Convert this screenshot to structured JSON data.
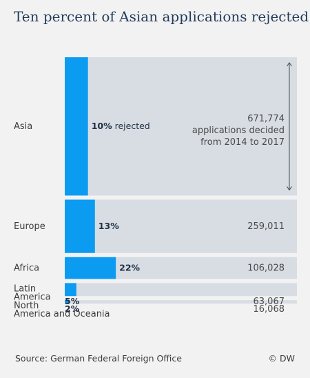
{
  "chart_data": {
    "type": "bar",
    "title": "Ten percent of Asian applications rejected",
    "categories": [
      "Asia",
      "Europe",
      "Africa",
      "Latin America",
      "North America and Oceania"
    ],
    "category_lines": [
      [
        "Asia"
      ],
      [
        "Europe"
      ],
      [
        "Africa"
      ],
      [
        "Latin",
        "America"
      ],
      [
        "North",
        "America and Oceania"
      ]
    ],
    "series": [
      {
        "values": [
          10,
          13,
          22,
          5,
          2
        ]
      }
    ],
    "totals": [
      671774,
      259011,
      106028,
      63067,
      16068
    ],
    "total_labels": [
      "671,774",
      "259,011",
      "106,028",
      "63,067",
      "16,068"
    ],
    "pct_suffix": "%",
    "rejected_word": "rejected",
    "total_note_lines": [
      "applications decided",
      "from 2014 to 2017"
    ],
    "source": "Source: German Federal Foreign Office",
    "credit": "© DW",
    "colors": {
      "rejected_bar": "#0b9cf2",
      "total_bar": "#d7dde3",
      "background": "#f2f2f2",
      "arrow": "#4a4a4a",
      "title": "#233b5b"
    }
  }
}
